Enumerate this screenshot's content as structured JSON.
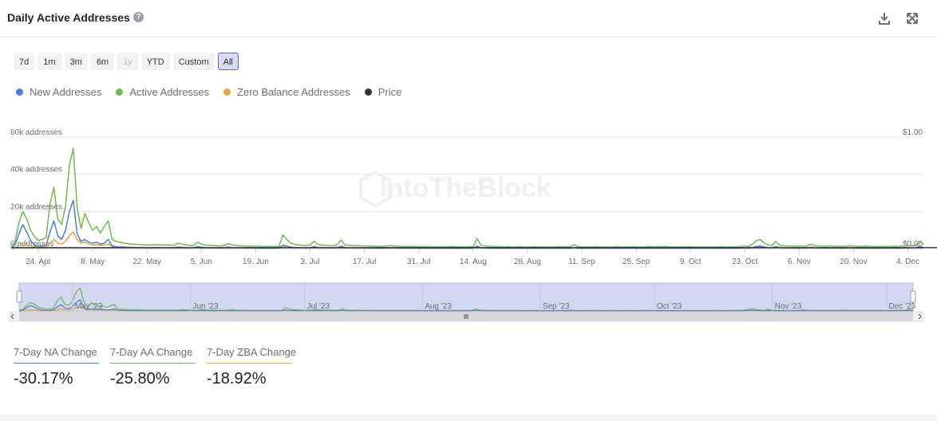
{
  "header": {
    "title": "Daily Active Addresses",
    "help_icon": "question-circle-icon",
    "download_icon": "download-icon",
    "expand_icon": "expand-icon"
  },
  "range_buttons": [
    {
      "label": "7d",
      "state": "normal"
    },
    {
      "label": "1m",
      "state": "normal"
    },
    {
      "label": "3m",
      "state": "normal"
    },
    {
      "label": "6m",
      "state": "normal"
    },
    {
      "label": "1y",
      "state": "disabled"
    },
    {
      "label": "YTD",
      "state": "normal"
    },
    {
      "label": "Custom",
      "state": "normal"
    },
    {
      "label": "All",
      "state": "active"
    }
  ],
  "legend": [
    {
      "label": "New Addresses",
      "color": "#4a7fd6"
    },
    {
      "label": "Active Addresses",
      "color": "#71bb4c"
    },
    {
      "label": "Zero Balance Addresses",
      "color": "#f0a23a"
    },
    {
      "label": "Price",
      "color": "#2f3237"
    }
  ],
  "watermark": "IntoTheBlock",
  "chart_data": {
    "type": "line",
    "y_ticks": [
      "0 addresses",
      "20k addresses",
      "40k addresses",
      "60k addresses"
    ],
    "ylim": [
      0,
      60000
    ],
    "y2_ticks": [
      "$0.00",
      "$1.00"
    ],
    "y2lim": [
      0,
      1
    ],
    "x_ticks": [
      "24. Apr",
      "8. May",
      "22. May",
      "5. Jun",
      "19. Jun",
      "3. Jul",
      "17. Jul",
      "31. Jul",
      "14. Aug",
      "28. Aug",
      "11. Sep",
      "25. Sep",
      "9. Oct",
      "23. Oct",
      "6. Nov",
      "20. Nov",
      "4. Dec"
    ],
    "x_start": "2023-04-17",
    "series": [
      {
        "name": "Active Addresses",
        "color": "#71bb4c",
        "values": [
          1500,
          4000,
          14000,
          20000,
          16000,
          10000,
          6500,
          4500,
          5000,
          6000,
          24000,
          33000,
          16000,
          13000,
          23000,
          45000,
          54000,
          22000,
          11000,
          19000,
          14000,
          10000,
          12000,
          8500,
          12000,
          15000,
          5000,
          4000,
          3500,
          3000,
          2800,
          2500,
          2400,
          2300,
          2200,
          2100,
          2000,
          2200,
          2100,
          2000,
          2100,
          2000,
          1900,
          3000,
          2500,
          2000,
          1800,
          1700,
          3500,
          2500,
          2000,
          1800,
          1700,
          1600,
          1500,
          1900,
          2800,
          2000,
          1700,
          1600,
          1500,
          1400,
          1400,
          1500,
          1300,
          1200,
          1300,
          1200,
          1300,
          1200,
          7500,
          5000,
          3000,
          2500,
          2000,
          1800,
          1700,
          2000,
          4000,
          2500,
          2000,
          1800,
          1700,
          1600,
          2200,
          4800,
          2000,
          1800,
          1700,
          1700,
          1600,
          1500,
          1500,
          1400,
          1400,
          1300,
          1300,
          1500,
          1700,
          1400,
          1300,
          1200,
          1200,
          1300,
          1200,
          1100,
          1100,
          1200,
          1100,
          1000,
          1100,
          1100,
          1000,
          1100,
          1100,
          1000,
          1100,
          1000,
          1100,
          1100,
          5500,
          2000,
          1500,
          1300,
          1200,
          1100,
          1100,
          1000,
          1100,
          1000,
          1000,
          1100,
          1000,
          1000,
          1000,
          1100,
          1000,
          1000,
          900,
          1000,
          1000,
          1100,
          1000,
          1100,
          1100,
          2200,
          1100,
          1000,
          1000,
          1000,
          1000,
          1100,
          1000,
          1000,
          1000,
          1000,
          1100,
          1000,
          1000,
          1000,
          1100,
          1000,
          1000,
          1000,
          1200,
          1100,
          1100,
          1100,
          1200,
          1100,
          1000,
          1000,
          1000,
          1100,
          1000,
          1100,
          1000,
          1000,
          1000,
          1000,
          1000,
          1000,
          1000,
          1100,
          1000,
          1000,
          1000,
          1100,
          1200,
          1500,
          1200,
          2500,
          4500,
          5000,
          3000,
          2000,
          1800,
          4000,
          1700,
          1600,
          1500,
          1500,
          1400,
          1500,
          1400,
          1500,
          2500,
          1600,
          1500,
          1400,
          1400,
          1500,
          1400,
          1400,
          1300,
          1400,
          1600,
          1500,
          1300,
          1300,
          1400,
          1300,
          1200,
          1200,
          1300,
          1300,
          1200,
          1300,
          1300,
          1400,
          1500,
          1600,
          1700,
          1800,
          4000,
          2500
        ]
      },
      {
        "name": "New Addresses",
        "color": "#4a7fd6",
        "values": [
          500,
          2000,
          8000,
          13000,
          9000,
          4500,
          2000,
          1500,
          1500,
          2000,
          9000,
          15000,
          7000,
          5000,
          10000,
          20000,
          26000,
          8000,
          4000,
          5000,
          3500,
          3000,
          3500,
          2500,
          3000,
          5000,
          1500,
          1200,
          1000,
          900,
          800,
          700,
          700,
          600,
          600,
          600,
          600,
          600,
          600,
          600,
          600,
          600,
          550,
          900,
          700,
          600,
          550,
          500,
          1200,
          800,
          600,
          500,
          500,
          500,
          450,
          600,
          900,
          600,
          500,
          500,
          450,
          450,
          450,
          450,
          400,
          400,
          400,
          400,
          400,
          400,
          2000,
          1400,
          900,
          700,
          600,
          550,
          500,
          600,
          1200,
          700,
          600,
          550,
          500,
          500,
          700,
          1400,
          600,
          550,
          500,
          500,
          480,
          450,
          450,
          430,
          420,
          400,
          400,
          450,
          500,
          420,
          400,
          380,
          380,
          400,
          380,
          350,
          350,
          380,
          350,
          320,
          350,
          350,
          320,
          350,
          350,
          320,
          350,
          320,
          350,
          350,
          1500,
          600,
          450,
          400,
          380,
          350,
          350,
          320,
          350,
          320,
          320,
          350,
          320,
          320,
          320,
          350,
          320,
          320,
          300,
          320,
          320,
          350,
          320,
          350,
          350,
          650,
          350,
          320,
          320,
          320,
          320,
          350,
          320,
          320,
          320,
          320,
          350,
          320,
          320,
          320,
          350,
          320,
          320,
          320,
          380,
          350,
          350,
          350,
          380,
          350,
          320,
          320,
          320,
          350,
          320,
          350,
          320,
          320,
          320,
          320,
          320,
          320,
          320,
          350,
          320,
          320,
          320,
          350,
          380,
          450,
          380,
          750,
          1300,
          1500,
          900,
          600,
          550,
          1200,
          520,
          500,
          450,
          450,
          430,
          450,
          430,
          450,
          750,
          480,
          450,
          430,
          430,
          450,
          430,
          430,
          400,
          430,
          480,
          450,
          400,
          400,
          430,
          400,
          380,
          380,
          400,
          400,
          380,
          400,
          400,
          430,
          450,
          480,
          520,
          550,
          1200,
          750
        ]
      },
      {
        "name": "Zero Balance Addresses",
        "color": "#f0a23a",
        "values": [
          200,
          500,
          1500,
          2500,
          2000,
          1500,
          1000,
          800,
          800,
          1000,
          3000,
          5000,
          3000,
          2500,
          4000,
          7000,
          9000,
          5000,
          3000,
          3500,
          2500,
          2000,
          2200,
          1800,
          2000,
          2500,
          1200,
          1000,
          900,
          800,
          750,
          700,
          650,
          600,
          600,
          580,
          550,
          580,
          560,
          550,
          560,
          550,
          520,
          700,
          600,
          550,
          520,
          500,
          800,
          650,
          550,
          520,
          500,
          480,
          450,
          520,
          700,
          550,
          500,
          480,
          450,
          430,
          430,
          450,
          400,
          380,
          400,
          380,
          400,
          380,
          1500,
          1100,
          800,
          650,
          550,
          520,
          500,
          550,
          900,
          650,
          550,
          520,
          500,
          480,
          600,
          1100,
          550,
          520,
          500,
          500,
          480,
          450,
          450,
          430,
          420,
          400,
          400,
          450,
          500,
          420,
          400,
          380,
          380,
          400,
          380,
          350,
          350,
          380,
          350,
          320,
          350,
          350,
          320,
          350,
          350,
          320,
          350,
          320,
          350,
          350,
          1200,
          550,
          450,
          400,
          380,
          350,
          350,
          320,
          350,
          320,
          320,
          350,
          320,
          320,
          320,
          350,
          320,
          320,
          300,
          320,
          320,
          350,
          320,
          350,
          350,
          550,
          350,
          320,
          320,
          320,
          320,
          350,
          320,
          320,
          320,
          320,
          350,
          320,
          320,
          320,
          350,
          320,
          320,
          320,
          380,
          350,
          350,
          350,
          380,
          350,
          320,
          320,
          320,
          350,
          320,
          350,
          320,
          320,
          320,
          320,
          320,
          320,
          320,
          350,
          320,
          320,
          320,
          350,
          380,
          450,
          380,
          650,
          1100,
          1200,
          800,
          600,
          550,
          1000,
          520,
          500,
          450,
          450,
          430,
          450,
          430,
          450,
          650,
          480,
          450,
          430,
          430,
          450,
          430,
          430,
          400,
          430,
          480,
          450,
          400,
          400,
          430,
          400,
          380,
          380,
          400,
          400,
          380,
          400,
          400,
          430,
          450,
          480,
          520,
          550,
          900,
          650
        ]
      },
      {
        "name": "Price",
        "color": "#2f3237",
        "axis": "right",
        "values": [
          0.01,
          0.01,
          0.01,
          0.01,
          0.01,
          0.01,
          0.01,
          0.01,
          0.01,
          0.01,
          0.01,
          0.01,
          0.01,
          0.01,
          0.01,
          0.01,
          0.01,
          0.01,
          0.01,
          0.01,
          0.01,
          0.01,
          0.01,
          0.01,
          0.01,
          0.01,
          0.01,
          0.01,
          0.01,
          0.01,
          0.01,
          0.01,
          0.01,
          0.01,
          0.01,
          0.01,
          0.01,
          0.01,
          0.01,
          0.01,
          0.01,
          0.01,
          0.01,
          0.01,
          0.01,
          0.01,
          0.01,
          0.01,
          0.01,
          0.01,
          0.01,
          0.01,
          0.01,
          0.01,
          0.01,
          0.01,
          0.01,
          0.01,
          0.01,
          0.01,
          0.01,
          0.01,
          0.01,
          0.01,
          0.01,
          0.01,
          0.01,
          0.01,
          0.01,
          0.01,
          0.01,
          0.01,
          0.01,
          0.01,
          0.01,
          0.01,
          0.01,
          0.01,
          0.01,
          0.01,
          0.01,
          0.01,
          0.01,
          0.01,
          0.01,
          0.01,
          0.01,
          0.01,
          0.01,
          0.01,
          0.01,
          0.01,
          0.01,
          0.01,
          0.01,
          0.01,
          0.01,
          0.01,
          0.01,
          0.01,
          0.01,
          0.01,
          0.01,
          0.01,
          0.01,
          0.01,
          0.01,
          0.01,
          0.01,
          0.01,
          0.01,
          0.01,
          0.01,
          0.01,
          0.01,
          0.01,
          0.01,
          0.01,
          0.01,
          0.01,
          0.01,
          0.01,
          0.01,
          0.01,
          0.01,
          0.01,
          0.01,
          0.01,
          0.01,
          0.01,
          0.01,
          0.01,
          0.01,
          0.01,
          0.01,
          0.01,
          0.01,
          0.01,
          0.01,
          0.01,
          0.01,
          0.01,
          0.01,
          0.01,
          0.01,
          0.01,
          0.01,
          0.01,
          0.01,
          0.01,
          0.01,
          0.01,
          0.01,
          0.01,
          0.01,
          0.01,
          0.01,
          0.01,
          0.01,
          0.01,
          0.01,
          0.01,
          0.01,
          0.01,
          0.01,
          0.01,
          0.01,
          0.01,
          0.01,
          0.01,
          0.01,
          0.01,
          0.01,
          0.01,
          0.01,
          0.01,
          0.01,
          0.01,
          0.01,
          0.01,
          0.01,
          0.01,
          0.01,
          0.01,
          0.01,
          0.01,
          0.01,
          0.01,
          0.01,
          0.01,
          0.01,
          0.01,
          0.01,
          0.01,
          0.01,
          0.01,
          0.01,
          0.01,
          0.01,
          0.01,
          0.01,
          0.01,
          0.01,
          0.01,
          0.01,
          0.01,
          0.01,
          0.01,
          0.01,
          0.01,
          0.01,
          0.01,
          0.01,
          0.01,
          0.01,
          0.01,
          0.01,
          0.01,
          0.01,
          0.01,
          0.01,
          0.01,
          0.01,
          0.01,
          0.01,
          0.01,
          0.01,
          0.01,
          0.01,
          0.01,
          0.01,
          0.01,
          0.01,
          0.01,
          0.01,
          0.01,
          0.01,
          0.01,
          0.01,
          0.01,
          0.01,
          0.01,
          0.01,
          0.01
        ]
      }
    ]
  },
  "navigator": {
    "labels": [
      "May '23",
      "Jun '23",
      "Jul '23",
      "Aug '23",
      "Sep '23",
      "Oct '23",
      "Nov '23",
      "Dec '23"
    ]
  },
  "stats": [
    {
      "label": "7-Day NA Change",
      "value": "-30.17%",
      "color": "#4a7fd6"
    },
    {
      "label": "7-Day AA Change",
      "value": "-25.80%",
      "color": "#71bb4c"
    },
    {
      "label": "7-Day ZBA Change",
      "value": "-18.92%",
      "color": "#f0a23a"
    }
  ]
}
